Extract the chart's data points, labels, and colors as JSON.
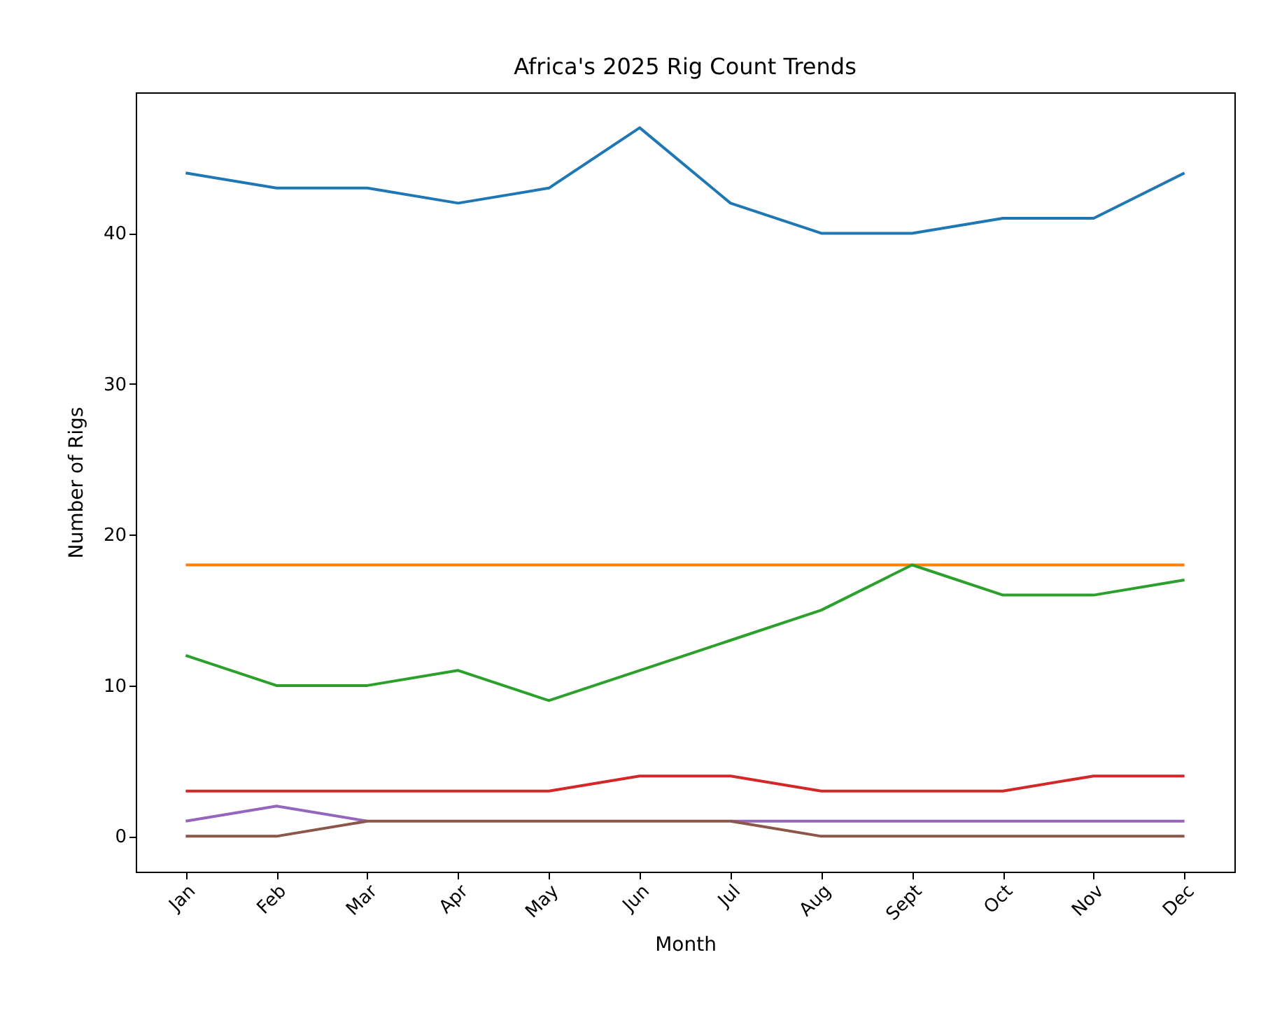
{
  "chart_data": {
    "type": "line",
    "title": "Africa's 2025 Rig Count Trends",
    "xlabel": "Month",
    "ylabel": "Number of Rigs",
    "categories": [
      "Jan",
      "Feb",
      "Mar",
      "Apr",
      "May",
      "Jun",
      "Jul",
      "Aug",
      "Sept",
      "Oct",
      "Nov",
      "Dec"
    ],
    "ylim": [
      -2.35,
      49.35
    ],
    "yticks": [
      0,
      10,
      20,
      30,
      40
    ],
    "grid": false,
    "legend": false,
    "marker": "none",
    "line_style": "solid",
    "series": [
      {
        "color": "#1f77b4",
        "values": [
          44,
          43,
          43,
          42,
          43,
          47,
          42,
          40,
          40,
          41,
          41,
          44
        ]
      },
      {
        "color": "#ff7f0e",
        "values": [
          18,
          18,
          18,
          18,
          18,
          18,
          18,
          18,
          18,
          18,
          18,
          18
        ]
      },
      {
        "color": "#2ca02c",
        "values": [
          12,
          10,
          10,
          11,
          9,
          11,
          13,
          15,
          18,
          16,
          16,
          17
        ]
      },
      {
        "color": "#d62728",
        "values": [
          3,
          3,
          3,
          3,
          3,
          4,
          4,
          3,
          3,
          3,
          4,
          4
        ]
      },
      {
        "color": "#9467bd",
        "values": [
          1,
          2,
          1,
          null,
          null,
          null,
          1,
          1,
          1,
          1,
          1,
          1
        ]
      },
      {
        "color": "#8c564b",
        "values": [
          0,
          0,
          1,
          1,
          1,
          1,
          1,
          0,
          0,
          0,
          0,
          0
        ]
      }
    ]
  }
}
